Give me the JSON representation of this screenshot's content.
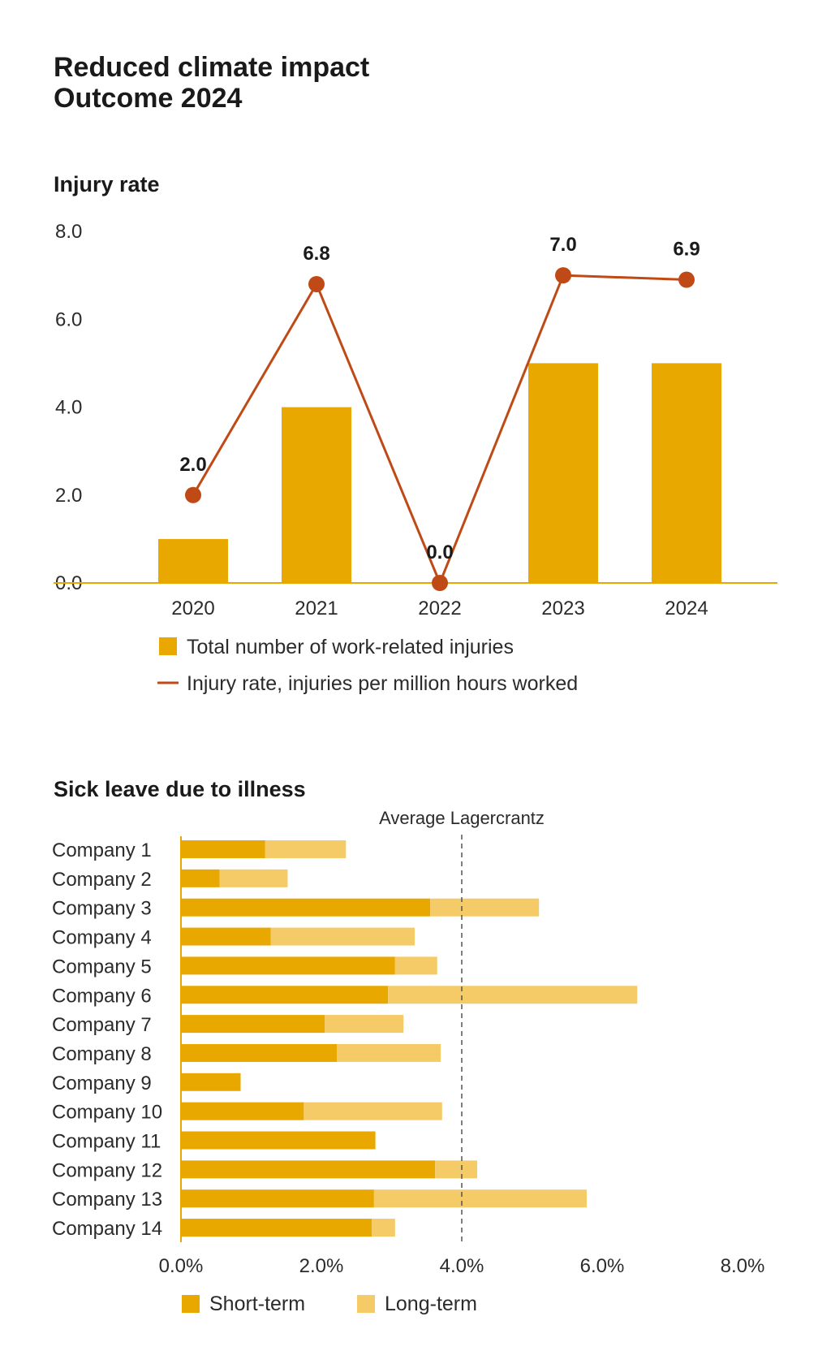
{
  "page": {
    "title_line1": "Reduced climate impact",
    "title_line2": "Outcome 2024"
  },
  "chart_data": [
    {
      "type": "bar",
      "title": "Injury rate",
      "categories": [
        "2020",
        "2021",
        "2022",
        "2023",
        "2024"
      ],
      "ylim": [
        0,
        8
      ],
      "yticks": [
        "0.0",
        "2.0",
        "4.0",
        "6.0",
        "8.0"
      ],
      "grid": false,
      "legend_position": "bottom",
      "series": [
        {
          "name": "Total number of work-related injuries",
          "kind": "bar",
          "color": "#E8A800",
          "values": [
            1.0,
            4.0,
            0.0,
            5.0,
            5.0
          ]
        },
        {
          "name": "Injury rate, injuries per million hours worked",
          "kind": "line",
          "color": "#BF4A16",
          "values": [
            2.0,
            6.8,
            0.0,
            7.0,
            6.9
          ],
          "labels": [
            "2.0",
            "6.8",
            "0.0",
            "7.0",
            "6.9"
          ]
        }
      ]
    },
    {
      "type": "bar",
      "orientation": "horizontal",
      "stacked": true,
      "title": "Sick leave due to illness",
      "categories": [
        "Company 1",
        "Company 2",
        "Company 3",
        "Company 4",
        "Company 5",
        "Company 6",
        "Company 7",
        "Company 8",
        "Company 9",
        "Company 10",
        "Company 11",
        "Company 12",
        "Company 13",
        "Company 14"
      ],
      "xlim": [
        0,
        8
      ],
      "xticks": [
        "0.0%",
        "2.0%",
        "4.0%",
        "6.0%",
        "8.0%"
      ],
      "grid": false,
      "legend_position": "bottom",
      "reference_line": {
        "label": "Average Lagercrantz",
        "value": 4.0
      },
      "series": [
        {
          "name": "Short-term",
          "color": "#E8A800",
          "values": [
            1.2,
            0.55,
            3.55,
            1.28,
            3.05,
            2.95,
            2.05,
            2.22,
            0.85,
            1.75,
            2.77,
            3.62,
            2.75,
            2.72
          ]
        },
        {
          "name": "Long-term",
          "color": "#F5CB68",
          "values": [
            1.15,
            0.97,
            1.55,
            2.05,
            0.6,
            3.55,
            1.12,
            1.48,
            0.0,
            1.97,
            0.0,
            0.6,
            3.03,
            0.33
          ]
        }
      ]
    }
  ]
}
